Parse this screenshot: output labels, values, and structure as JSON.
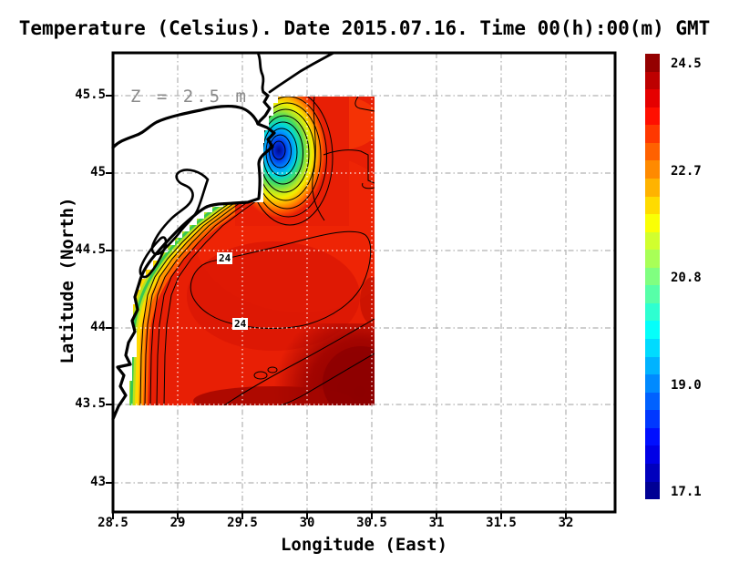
{
  "title": "Temperature (Celsius). Date 2015.07.16. Time 00(h):00(m) GMT",
  "axes": {
    "x": {
      "label": "Longitude (East)",
      "ticks": [
        "28.5",
        "29",
        "29.5",
        "30",
        "30.5",
        "31",
        "31.5",
        "32"
      ]
    },
    "y": {
      "label": "Latitude (North)",
      "ticks": [
        "45.5",
        "45",
        "44.5",
        "44",
        "43.5",
        "43"
      ]
    }
  },
  "annotation": {
    "depth_label": "Z = 2.5 m"
  },
  "colorbar": {
    "labels": [
      "24.5",
      "22.7",
      "20.8",
      "19.0",
      "17.1"
    ],
    "min_value": 17.1,
    "max_value": 24.5,
    "colormap": "jet",
    "min_color": "#000080",
    "max_color": "#800000"
  },
  "contour_labels": [
    {
      "text": "24"
    },
    {
      "text": "24"
    }
  ],
  "colors": {
    "background": "#ffffff",
    "coastline": "#000000",
    "grid_outside_field": "#b2b2b2",
    "grid_inside_field": "#ffffff",
    "field_base_red": "#e81f05",
    "cold_core": "#000a8c",
    "annotation_gray": "#8a8a8a"
  },
  "chart_data": {
    "type": "heatmap",
    "title": "Temperature (Celsius). Date 2015.07.16. Time 00(h):00(m) GMT",
    "xlabel": "Longitude (East)",
    "ylabel": "Latitude (North)",
    "xlim": [
      28.5,
      32.4
    ],
    "ylim": [
      42.8,
      45.8
    ],
    "x_ticks": [
      28.5,
      29,
      29.5,
      30,
      30.5,
      31,
      31.5,
      32
    ],
    "y_ticks": [
      43,
      43.5,
      44,
      44.5,
      45,
      45.5
    ],
    "grid": true,
    "units": "Celsius",
    "depth_m": 2.5,
    "datetime": "2015.07.16 00:00 GMT",
    "value_range": [
      17.1,
      24.5
    ],
    "colorbar_ticks": [
      24.5,
      22.7,
      20.8,
      19.0,
      17.1
    ],
    "colorbar_position": "right",
    "contour_interval_c": 0.3,
    "labeled_contours_c": [
      24
    ],
    "field_extent": {
      "lon": [
        28.65,
        30.55
      ],
      "lat": [
        43.5,
        45.5
      ]
    },
    "features": [
      {
        "name": "cold coastal upwelling core near Danube delta",
        "lon": 29.95,
        "lat": 45.2,
        "value_c": 17.5
      },
      {
        "name": "warm interior enclosed by 24C contour",
        "lon": 29.6,
        "lat": 44.3,
        "value_c": 24.1
      },
      {
        "name": "warmest water, south-east of field",
        "lon": 30.3,
        "lat": 43.55,
        "value_c": 24.5
      },
      {
        "name": "cool band along south-west coast",
        "lon": 28.75,
        "lat": 43.9,
        "value_c": 21.0
      }
    ]
  }
}
